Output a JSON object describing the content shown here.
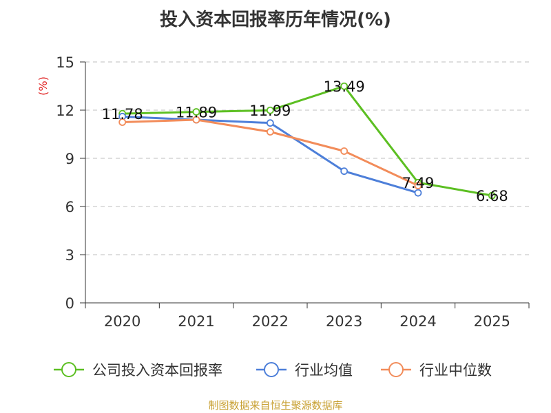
{
  "chart_data": {
    "type": "line",
    "title": "投入资本回报率历年情况(%)",
    "ylabel": "(%)",
    "xlabel": "",
    "ylim": [
      0,
      15
    ],
    "yticks": [
      0,
      3,
      6,
      9,
      12,
      15
    ],
    "grid": true,
    "categories": [
      "2020",
      "2021",
      "2022",
      "2023",
      "2024",
      "2025"
    ],
    "legend_position": "bottom",
    "series": [
      {
        "name": "公司投入资本回报率",
        "color": "#5cbf22",
        "values": [
          11.78,
          11.89,
          11.99,
          13.49,
          7.49,
          6.68
        ],
        "labels": [
          "11.78",
          "11.89",
          "11.99",
          "13.49",
          "7.49",
          "6.68"
        ]
      },
      {
        "name": "行业均值",
        "color": "#4d7fd9",
        "values": [
          11.6,
          11.4,
          11.2,
          8.2,
          6.85,
          null
        ]
      },
      {
        "name": "行业中位数",
        "color": "#f28c5a",
        "values": [
          11.25,
          11.4,
          10.65,
          9.45,
          7.3,
          null
        ]
      }
    ]
  },
  "source": "制图数据来自恒生聚源数据库"
}
